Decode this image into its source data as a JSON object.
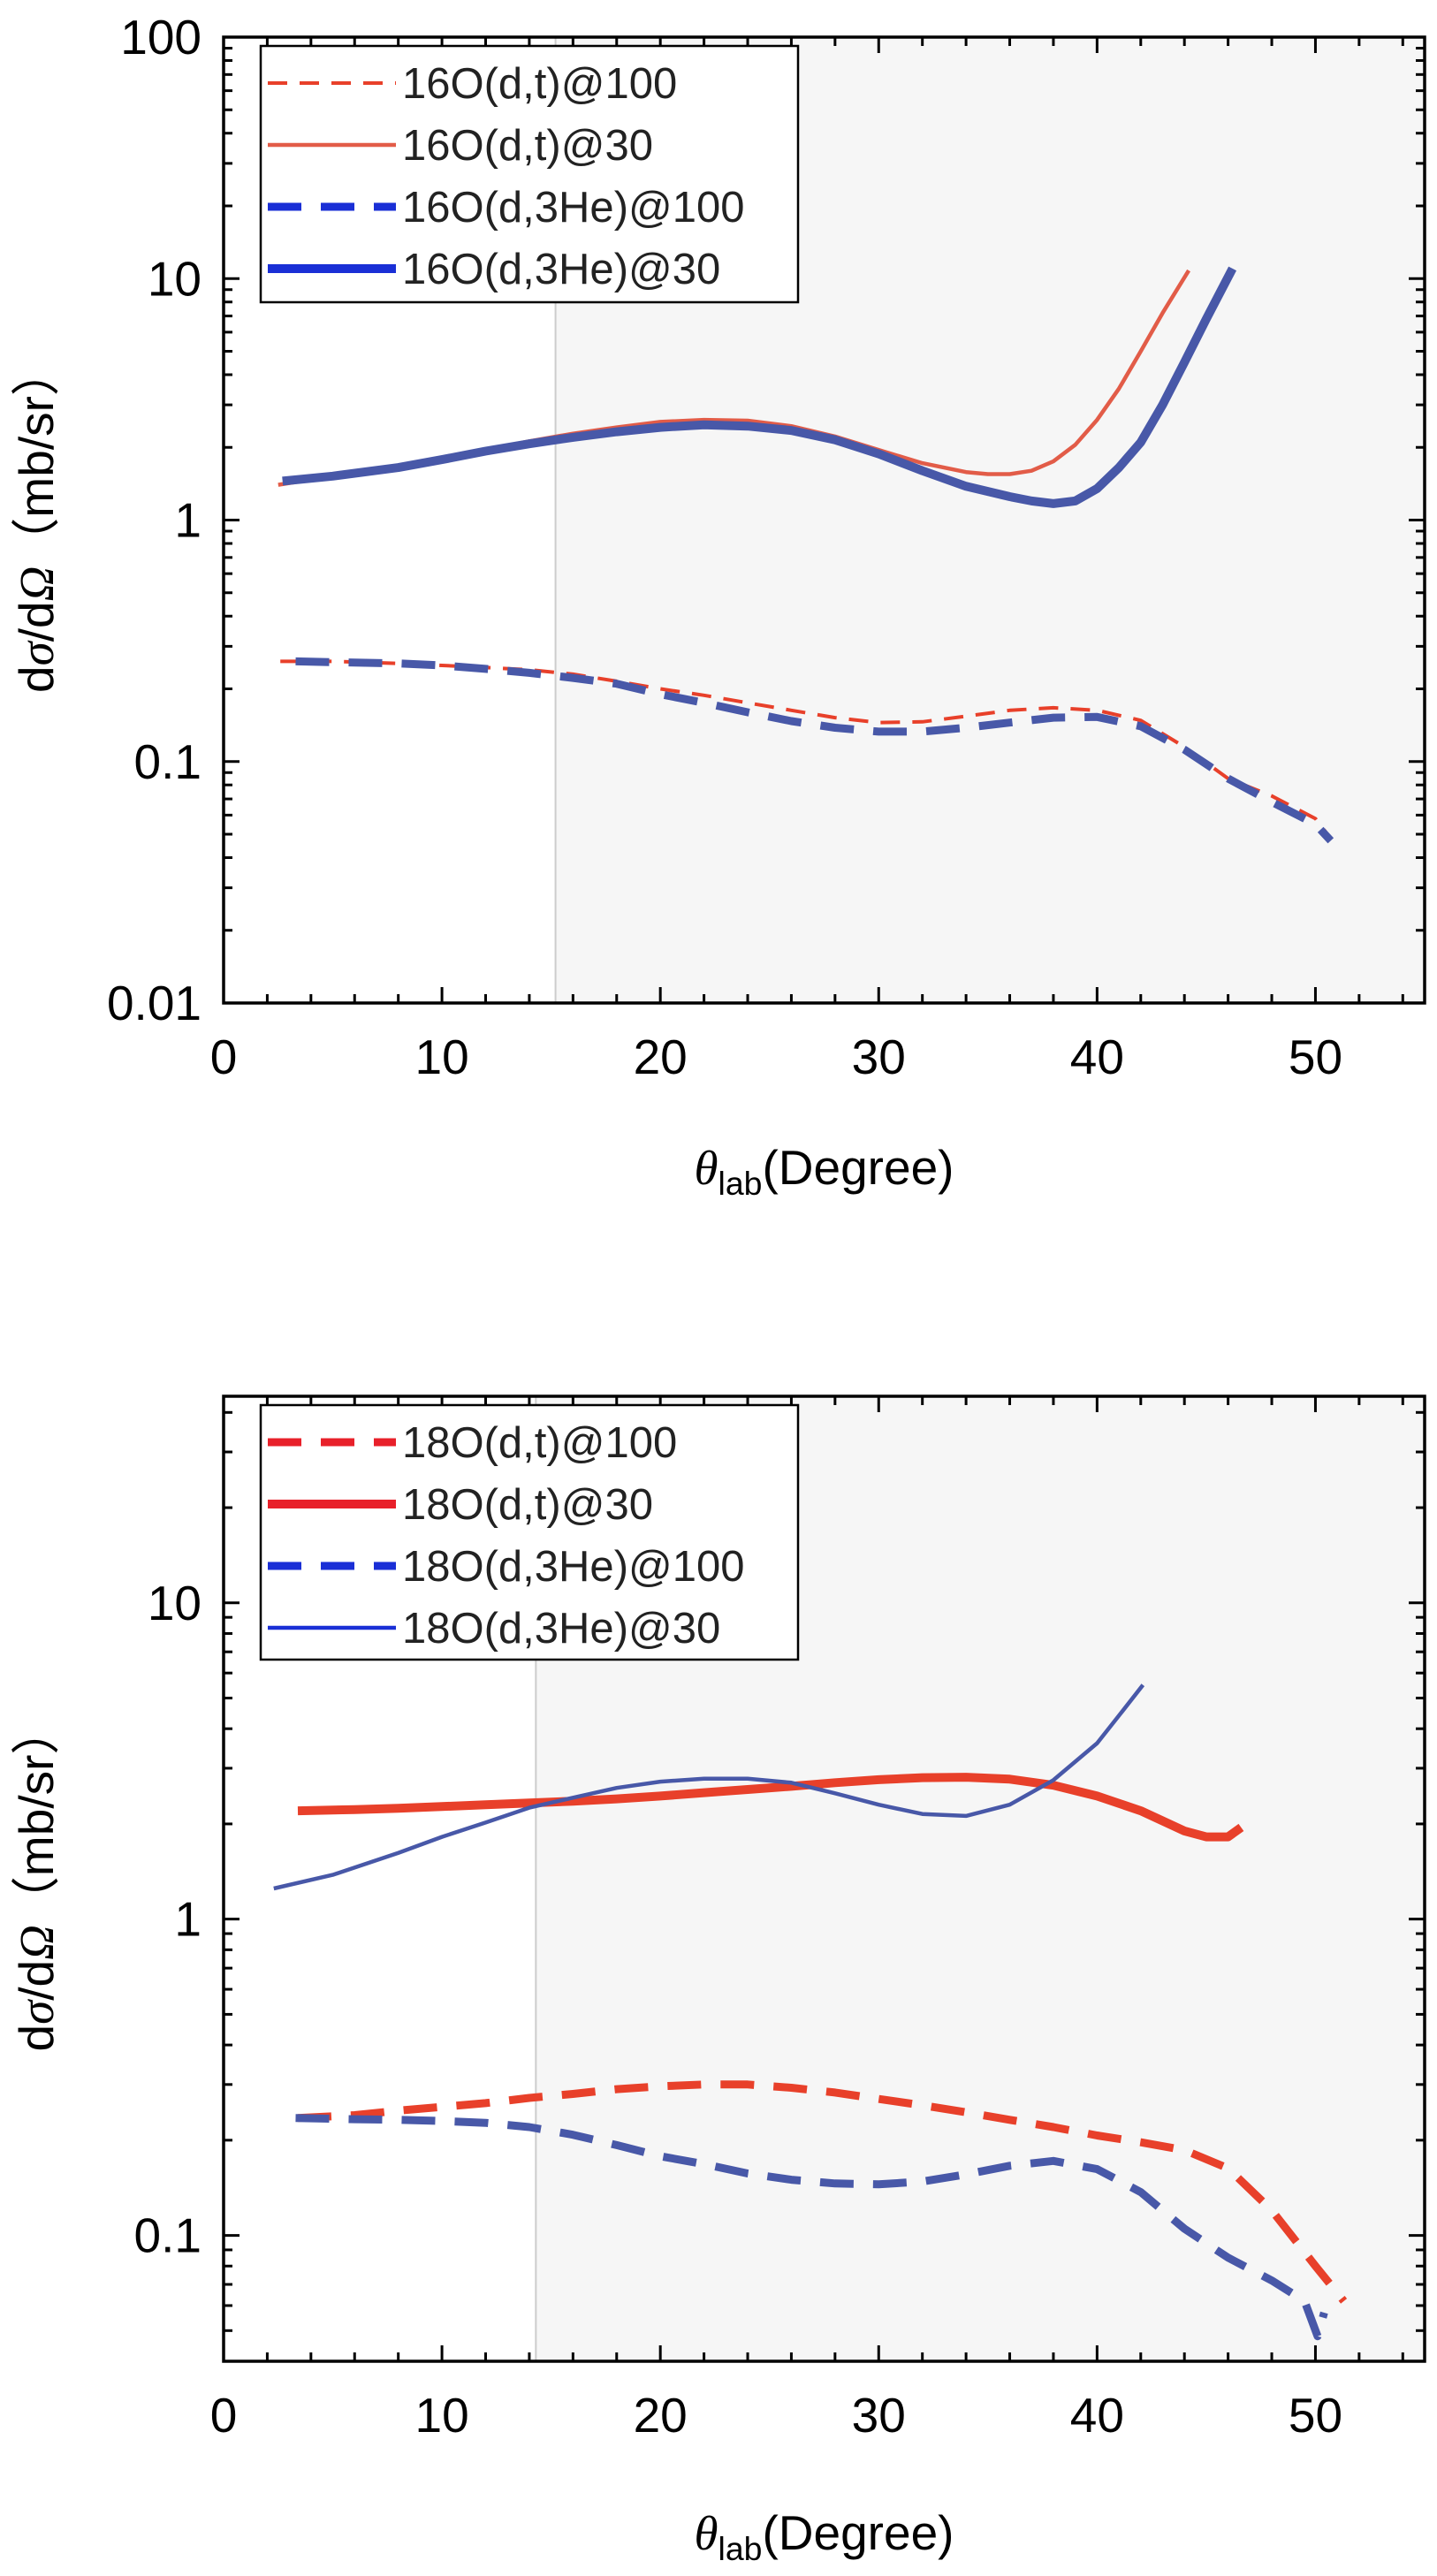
{
  "chart_data": [
    {
      "type": "line",
      "xlabel": {
        "symbol": "θ",
        "sub": "lab",
        "rest": "(Degree)"
      },
      "ylabel": {
        "pre": "d",
        "sigma": "σ",
        "mid": "/d",
        "omega": "Ω",
        "post": "（mb/sr）"
      },
      "xlim": [
        0,
        55
      ],
      "ylim": [
        0.01,
        100
      ],
      "yscale": "log",
      "xticks": [
        "0",
        "10",
        "20",
        "30",
        "40",
        "50"
      ],
      "yticks": [
        "0.01",
        "0.1",
        "1",
        "10",
        "100"
      ],
      "shade_from_x": 15.2,
      "legend_position": "top-left",
      "series": [
        {
          "name": "16O(d,t)@100",
          "style": "dashed-thin",
          "color": "#e8402a",
          "x": [
            2.6,
            5,
            8,
            10,
            12,
            14,
            16,
            18,
            20,
            22,
            24,
            26,
            28,
            30,
            32,
            34,
            36,
            38,
            40,
            42,
            44,
            46,
            48,
            50,
            50.7
          ],
          "y": [
            0.26,
            0.26,
            0.255,
            0.25,
            0.245,
            0.24,
            0.23,
            0.215,
            0.2,
            0.188,
            0.175,
            0.163,
            0.152,
            0.145,
            0.146,
            0.154,
            0.163,
            0.167,
            0.163,
            0.148,
            0.115,
            0.085,
            0.072,
            0.058,
            0.048
          ]
        },
        {
          "name": "16O(d,t)@30",
          "style": "solid-thin",
          "color": "#e25c48",
          "x": [
            2.5,
            5,
            8,
            10,
            12,
            14,
            16,
            18,
            20,
            22,
            24,
            26,
            28,
            30,
            32,
            34,
            35,
            36,
            37,
            38,
            39,
            40,
            41,
            42,
            43,
            44.2
          ],
          "y": [
            1.4,
            1.52,
            1.65,
            1.78,
            1.95,
            2.12,
            2.28,
            2.42,
            2.55,
            2.6,
            2.58,
            2.45,
            2.22,
            1.95,
            1.72,
            1.58,
            1.55,
            1.55,
            1.6,
            1.75,
            2.05,
            2.6,
            3.5,
            5.0,
            7.2,
            10.8
          ]
        },
        {
          "name": "16O(d,3He)@100",
          "style": "dashed-thick",
          "color": "#4858a8",
          "x": [
            3.3,
            5,
            8,
            10,
            12,
            14,
            16,
            18,
            20,
            22,
            24,
            26,
            28,
            30,
            32,
            34,
            36,
            38,
            40,
            42,
            44,
            46,
            48,
            50,
            50.7
          ],
          "y": [
            0.26,
            0.258,
            0.255,
            0.25,
            0.242,
            0.233,
            0.222,
            0.21,
            0.19,
            0.175,
            0.16,
            0.147,
            0.138,
            0.133,
            0.133,
            0.138,
            0.145,
            0.152,
            0.153,
            0.14,
            0.112,
            0.085,
            0.068,
            0.055,
            0.047
          ]
        },
        {
          "name": "16O(d,3He)@30",
          "style": "solid-thick",
          "color": "#4858a8",
          "x": [
            2.7,
            5,
            8,
            10,
            12,
            14,
            16,
            18,
            20,
            22,
            24,
            26,
            28,
            30,
            32,
            34,
            36,
            37,
            38,
            39,
            40,
            41,
            42,
            43,
            44,
            45,
            46.2
          ],
          "y": [
            1.45,
            1.52,
            1.65,
            1.78,
            1.93,
            2.07,
            2.2,
            2.32,
            2.42,
            2.48,
            2.45,
            2.35,
            2.15,
            1.88,
            1.6,
            1.38,
            1.25,
            1.2,
            1.17,
            1.2,
            1.35,
            1.65,
            2.1,
            3.0,
            4.5,
            6.8,
            11.0
          ]
        }
      ]
    },
    {
      "type": "line",
      "xlabel": {
        "symbol": "θ",
        "sub": "lab",
        "rest": "(Degree)"
      },
      "ylabel": {
        "pre": "d",
        "sigma": "σ",
        "mid": "/d",
        "omega": "Ω",
        "post": "（mb/sr）"
      },
      "xlim": [
        0,
        55
      ],
      "ylim": [
        0.04,
        45
      ],
      "yscale": "log",
      "xticks": [
        "0",
        "10",
        "20",
        "30",
        "40",
        "50"
      ],
      "yticks": [
        "0.1",
        "1",
        "10"
      ],
      "shade_from_x": 14.3,
      "legend_position": "top-left",
      "series": [
        {
          "name": "18O(d,t)@100",
          "style": "dashed-thick",
          "color": "#e8402a",
          "x": [
            3.4,
            6,
            8,
            10,
            12,
            14,
            16,
            18,
            20,
            22,
            24,
            26,
            28,
            30,
            32,
            34,
            36,
            38,
            40,
            42,
            44,
            46,
            48,
            50,
            51.3
          ],
          "y": [
            0.235,
            0.24,
            0.248,
            0.255,
            0.262,
            0.272,
            0.28,
            0.29,
            0.296,
            0.3,
            0.3,
            0.293,
            0.283,
            0.27,
            0.258,
            0.245,
            0.232,
            0.22,
            0.207,
            0.197,
            0.186,
            0.163,
            0.12,
            0.08,
            0.062
          ]
        },
        {
          "name": "18O(d,t)@30",
          "style": "solid-thick",
          "color": "#e8402a",
          "x": [
            3.4,
            6,
            8,
            10,
            12,
            14,
            16,
            18,
            20,
            22,
            24,
            26,
            28,
            30,
            32,
            34,
            36,
            38,
            40,
            42,
            44,
            45,
            46,
            46.6
          ],
          "y": [
            2.2,
            2.22,
            2.24,
            2.27,
            2.3,
            2.33,
            2.36,
            2.4,
            2.45,
            2.51,
            2.57,
            2.63,
            2.7,
            2.76,
            2.8,
            2.81,
            2.77,
            2.65,
            2.45,
            2.2,
            1.9,
            1.82,
            1.82,
            1.95
          ]
        },
        {
          "name": "18O(d,3He)@100",
          "style": "dashed-thick",
          "color": "#4858a8",
          "x": [
            3.3,
            6,
            8,
            10,
            12,
            14,
            16,
            18,
            20,
            22,
            24,
            26,
            28,
            30,
            32,
            34,
            36,
            38,
            40,
            42,
            44,
            46,
            48,
            49.5,
            50.1,
            50.4
          ],
          "y": [
            0.235,
            0.233,
            0.232,
            0.23,
            0.227,
            0.22,
            0.208,
            0.193,
            0.178,
            0.168,
            0.157,
            0.15,
            0.146,
            0.145,
            0.148,
            0.156,
            0.166,
            0.172,
            0.162,
            0.137,
            0.105,
            0.085,
            0.072,
            0.062,
            0.048,
            0.057
          ]
        },
        {
          "name": "18O(d,3He)@30",
          "style": "solid-thin",
          "color": "#4858a8",
          "x": [
            2.3,
            5,
            8,
            10,
            12,
            14,
            16,
            18,
            20,
            22,
            24,
            26,
            28,
            30,
            32,
            34,
            36,
            38,
            40,
            41,
            42.1
          ],
          "y": [
            1.25,
            1.38,
            1.62,
            1.82,
            2.02,
            2.25,
            2.42,
            2.6,
            2.72,
            2.78,
            2.78,
            2.7,
            2.5,
            2.3,
            2.15,
            2.12,
            2.3,
            2.75,
            3.6,
            4.4,
            5.5
          ]
        }
      ]
    }
  ]
}
